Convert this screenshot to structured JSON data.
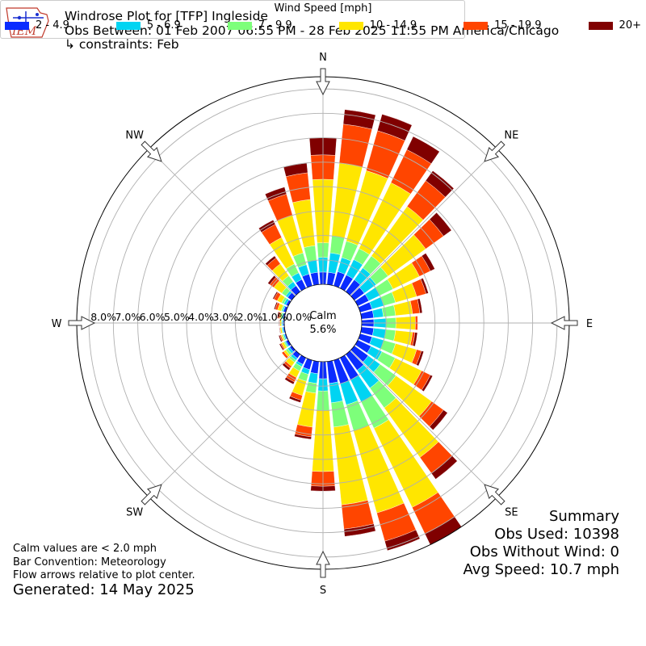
{
  "header": {
    "title": "Windrose Plot for [TFP] Ingleside",
    "subtitle": "Obs Between: 01 Feb 2007 06:55 PM - 28 Feb 2025 11:55 PM America/Chicago",
    "constraints": "↳ constraints: Feb",
    "logo_text": "IEM"
  },
  "footer": {
    "calm_note": "Calm values are < 2.0 mph",
    "bar_convention": "Bar Convention: Meteorology",
    "flow_note": "Flow arrows relative to plot center.",
    "generated": "Generated: 14 May 2025"
  },
  "summary": {
    "title": "Summary",
    "obs_used": "Obs Used: 10398",
    "obs_without_wind": "Obs Without Wind: 0",
    "avg_speed": "Avg Speed: 10.7 mph"
  },
  "legend": {
    "title": "Wind Speed [mph]",
    "items": [
      {
        "label": "2 - 4.9",
        "color": "#0a2cff"
      },
      {
        "label": "5 - 6.9",
        "color": "#00d4f2"
      },
      {
        "label": "7 - 9.9",
        "color": "#7dff7a"
      },
      {
        "label": "10 - 14.9",
        "color": "#ffe600"
      },
      {
        "label": "15 - 19.9",
        "color": "#ff4500"
      },
      {
        "label": "20+",
        "color": "#800000"
      }
    ]
  },
  "chart_data": {
    "type": "windrose",
    "calm_label": "Calm",
    "calm_value": "5.6%",
    "radial_ticks": [
      "0.0%",
      "1.0%",
      "2.0%",
      "3.0%",
      "4.0%",
      "5.0%",
      "6.0%",
      "7.0%",
      "8.0%"
    ],
    "radial_max": 8.5,
    "compass_labels": [
      {
        "label": "N",
        "angle": 0
      },
      {
        "label": "NE",
        "angle": 45
      },
      {
        "label": "E",
        "angle": 90
      },
      {
        "label": "SE",
        "angle": 135
      },
      {
        "label": "S",
        "angle": 180
      },
      {
        "label": "SW",
        "angle": 225
      },
      {
        "label": "W",
        "angle": 270
      },
      {
        "label": "NW",
        "angle": 315
      }
    ],
    "speed_bins": [
      "2 - 4.9",
      "5 - 6.9",
      "7 - 9.9",
      "10 - 14.9",
      "15 - 19.9",
      "20+"
    ],
    "directions": [
      0,
      10,
      20,
      30,
      40,
      50,
      60,
      70,
      80,
      90,
      100,
      110,
      120,
      130,
      140,
      150,
      160,
      170,
      180,
      190,
      200,
      210,
      220,
      230,
      240,
      250,
      260,
      270,
      280,
      290,
      300,
      310,
      320,
      330,
      340,
      350
    ],
    "cumulative": [
      [
        0.5,
        1.1,
        1.7,
        4.3,
        5.3,
        6.0
      ],
      [
        0.5,
        1.3,
        2.0,
        5.0,
        6.6,
        7.2
      ],
      [
        0.6,
        1.2,
        1.9,
        4.9,
        6.6,
        7.3
      ],
      [
        0.6,
        1.3,
        1.8,
        4.8,
        6.3,
        6.9
      ],
      [
        0.6,
        1.2,
        1.8,
        4.3,
        5.6,
        6.1
      ],
      [
        0.5,
        1.1,
        1.7,
        3.6,
        4.5,
        4.9
      ],
      [
        0.5,
        1.0,
        1.6,
        2.8,
        3.3,
        3.5
      ],
      [
        0.5,
        1.0,
        1.5,
        2.4,
        2.8,
        2.9
      ],
      [
        0.5,
        0.9,
        1.4,
        2.1,
        2.4,
        2.5
      ],
      [
        0.5,
        1.0,
        1.4,
        2.2,
        2.3,
        2.3
      ],
      [
        0.5,
        1.0,
        1.4,
        2.1,
        2.2,
        2.3
      ],
      [
        0.5,
        1.0,
        1.5,
        2.4,
        2.6,
        2.7
      ],
      [
        0.6,
        1.1,
        1.7,
        2.9,
        3.3,
        3.4
      ],
      [
        0.7,
        1.3,
        2.1,
        3.9,
        4.5,
        4.7
      ],
      [
        0.8,
        1.7,
        2.7,
        5.2,
        6.0,
        6.3
      ],
      [
        1.0,
        2.0,
        3.2,
        6.8,
        8.0,
        8.5
      ],
      [
        1.0,
        1.9,
        3.0,
        6.5,
        7.7,
        8.1
      ],
      [
        0.9,
        1.7,
        2.7,
        5.9,
        6.9,
        7.2
      ],
      [
        0.7,
        1.2,
        2.0,
        4.5,
        5.1,
        5.3
      ],
      [
        0.5,
        0.9,
        1.3,
        2.7,
        3.1,
        3.2
      ],
      [
        0.4,
        0.6,
        0.9,
        1.5,
        1.7,
        1.8
      ],
      [
        0.3,
        0.4,
        0.6,
        0.9,
        1.1,
        1.2
      ],
      [
        0.2,
        0.3,
        0.4,
        0.6,
        0.7,
        0.8
      ],
      [
        0.1,
        0.2,
        0.3,
        0.4,
        0.5,
        0.5
      ],
      [
        0.1,
        0.15,
        0.2,
        0.3,
        0.35,
        0.4
      ],
      [
        0.05,
        0.1,
        0.15,
        0.2,
        0.25,
        0.3
      ],
      [
        0.05,
        0.1,
        0.12,
        0.18,
        0.2,
        0.22
      ],
      [
        0.05,
        0.1,
        0.12,
        0.18,
        0.2,
        0.22
      ],
      [
        0.05,
        0.1,
        0.15,
        0.2,
        0.25,
        0.3
      ],
      [
        0.1,
        0.15,
        0.2,
        0.35,
        0.45,
        0.5
      ],
      [
        0.1,
        0.2,
        0.3,
        0.5,
        0.65,
        0.7
      ],
      [
        0.2,
        0.3,
        0.5,
        0.9,
        1.1,
        1.2
      ],
      [
        0.3,
        0.5,
        0.8,
        1.4,
        1.7,
        1.8
      ],
      [
        0.4,
        0.7,
        1.1,
        2.3,
        2.9,
        3.1
      ],
      [
        0.5,
        0.9,
        1.4,
        3.0,
        3.9,
        4.2
      ],
      [
        0.5,
        1.0,
        1.6,
        3.5,
        4.6,
        5.0
      ]
    ]
  }
}
